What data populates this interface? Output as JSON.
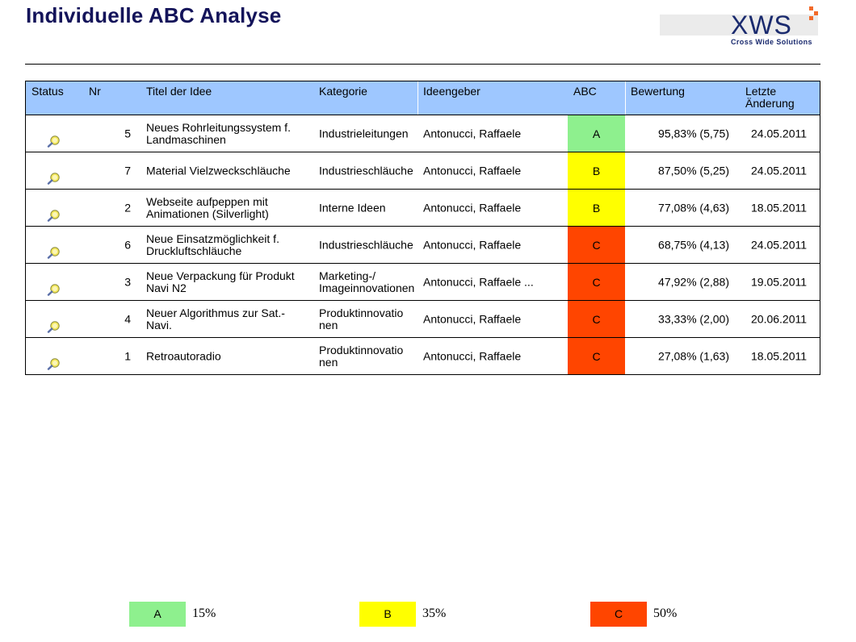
{
  "page": {
    "title": "Individuelle ABC Analyse"
  },
  "logo": {
    "name": "XWS",
    "tagline": "Cross Wide Solutions"
  },
  "colors": {
    "A": "#8ef08e",
    "B": "#ffff00",
    "C": "#ff4500",
    "header": "#9ec7ff",
    "title": "#14145a"
  },
  "table": {
    "headers": {
      "status": "Status",
      "nr": "Nr",
      "title": "Titel der Idee",
      "category": "Kategorie",
      "submitter": "Ideengeber",
      "abc": "ABC",
      "rating": "Bewertung",
      "last_change_1": "Letzte",
      "last_change_2": "Änderung"
    },
    "rows": [
      {
        "status_icon": "search-icon",
        "nr": "5",
        "title_1": "Neues Rohrleitungssystem f.",
        "title_2": "Landmaschinen",
        "category_1": "Industrieleitungen",
        "category_2": "",
        "submitter": "Antonucci, Raffaele",
        "abc": "A",
        "rating": "95,83% (5,75)",
        "date": "24.05.2011"
      },
      {
        "status_icon": "search-icon",
        "nr": "7",
        "title_1": "Material Vielzweckschläuche",
        "title_2": "",
        "category_1": "Industrieschläuche",
        "category_2": "",
        "submitter": "Antonucci, Raffaele",
        "abc": "B",
        "rating": "87,50% (5,25)",
        "date": "24.05.2011"
      },
      {
        "status_icon": "search-icon",
        "nr": "2",
        "title_1": "Webseite aufpeppen mit",
        "title_2": "Animationen (Silverlight)",
        "category_1": "Interne Ideen",
        "category_2": "",
        "submitter": "Antonucci, Raffaele",
        "abc": "B",
        "rating": "77,08% (4,63)",
        "date": "18.05.2011"
      },
      {
        "status_icon": "search-icon",
        "nr": "6",
        "title_1": "Neue Einsatzmöglichkeit f.",
        "title_2": "Druckluftschläuche",
        "category_1": "Industrieschläuche",
        "category_2": "",
        "submitter": "Antonucci, Raffaele",
        "abc": "C",
        "rating": "68,75% (4,13)",
        "date": "24.05.2011"
      },
      {
        "status_icon": "search-icon",
        "nr": "3",
        "title_1": "Neue Verpackung für Produkt",
        "title_2": "Navi N2",
        "category_1": "Marketing-/",
        "category_2": "Imageinnovationen",
        "submitter": "Antonucci, Raffaele ...",
        "abc": "C",
        "rating": "47,92% (2,88)",
        "date": "19.05.2011"
      },
      {
        "status_icon": "search-icon",
        "nr": "4",
        "title_1": "Neuer Algorithmus zur Sat.-",
        "title_2": "Navi.",
        "category_1": "Produktinnovatio",
        "category_2": "nen",
        "submitter": "Antonucci, Raffaele",
        "abc": "C",
        "rating": "33,33% (2,00)",
        "date": "20.06.2011"
      },
      {
        "status_icon": "search-icon",
        "nr": "1",
        "title_1": "Retroautoradio",
        "title_2": "",
        "category_1": "Produktinnovatio",
        "category_2": "nen",
        "submitter": "Antonucci, Raffaele",
        "abc": "C",
        "rating": "27,08% (1,63)",
        "date": "18.05.2011"
      }
    ]
  },
  "legend": [
    {
      "label": "A",
      "value": "15%"
    },
    {
      "label": "B",
      "value": "35%"
    },
    {
      "label": "C",
      "value": "50%"
    }
  ]
}
